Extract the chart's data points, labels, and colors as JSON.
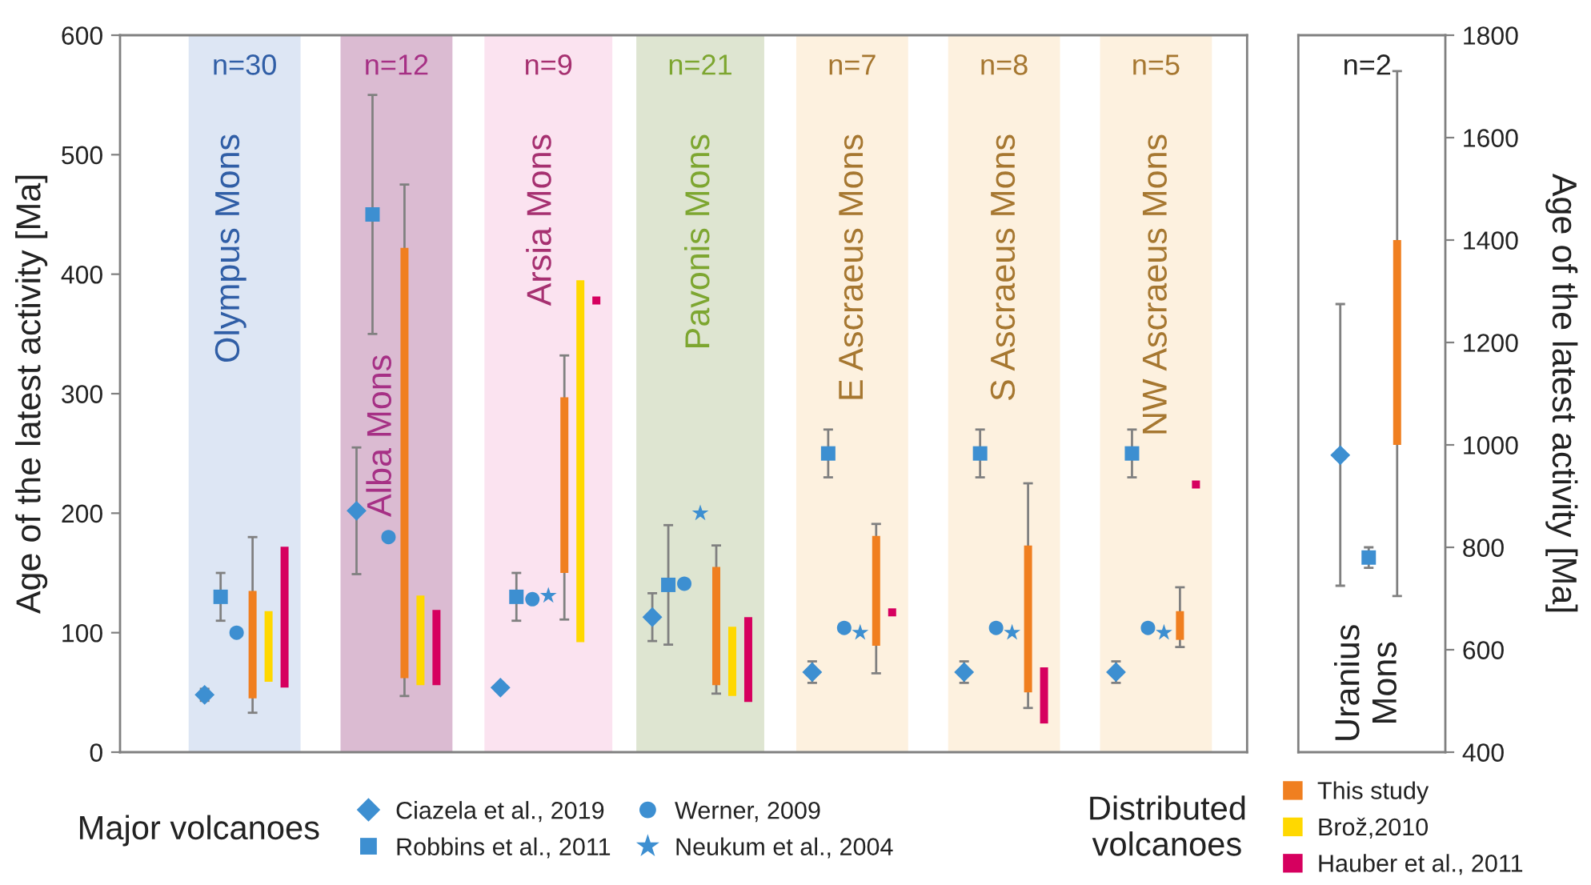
{
  "chart_data": [
    {
      "type": "scatter",
      "categories": [
        "Olympus Mons",
        "Alba Mons",
        "Arsia Mons",
        "Pavonis Mons",
        "E Ascraeus Mons",
        "S Ascraeus Mons",
        "NW Ascraeus Mons"
      ],
      "ylim": [
        0,
        600
      ],
      "yticks": [
        0,
        100,
        200,
        300,
        400,
        500,
        600
      ],
      "ylabel": "Age of the latest activity [Ma]",
      "tick_labels": "y",
      "legend": "bottom",
      "bands": [
        {
          "axis": "x",
          "from": "Olympus Mons",
          "to": "Olympus Mons",
          "color": "#dde6f4"
        },
        {
          "axis": "x",
          "from": "Alba Mons",
          "to": "Alba Mons",
          "color": "#dbbbd2"
        },
        {
          "axis": "x",
          "from": "Arsia Mons",
          "to": "Arsia Mons",
          "color": "#fbe3f0"
        },
        {
          "axis": "x",
          "from": "Pavonis Mons",
          "to": "Pavonis Mons",
          "color": "#dee5d1"
        },
        {
          "axis": "x",
          "from": "E Ascraeus Mons",
          "to": "E Ascraeus Mons",
          "color": "#fdf1df"
        },
        {
          "axis": "x",
          "from": "S Ascraeus Mons",
          "to": "S Ascraeus Mons",
          "color": "#fdf1df"
        },
        {
          "axis": "x",
          "from": "NW Ascraeus Mons",
          "to": "NW Ascraeus Mons",
          "color": "#fdf1df"
        }
      ],
      "annotations": [
        "n=30",
        "n=12",
        "n=9",
        "n=21",
        "n=7",
        "n=8",
        "n=5",
        "Major volcanoes",
        "Distributed\nvolcanoes"
      ],
      "series": [
        {
          "name": "Ciazela et al., 2019",
          "marker": "diamond",
          "color": "#3d8fd1",
          "values": [
            48,
            202,
            54,
            113,
            67,
            67,
            67
          ],
          "errors": [
            5,
            53,
            null,
            20,
            9,
            9,
            9
          ]
        },
        {
          "name": "Robbins et al., 2011",
          "marker": "square",
          "color": "#3d8fd1",
          "values": [
            130,
            450,
            130,
            140,
            250,
            250,
            250
          ],
          "errors": [
            20,
            100,
            20,
            50,
            20,
            20,
            20
          ]
        },
        {
          "name": "Werner, 2009",
          "marker": "circle",
          "color": "#3d8fd1",
          "values": [
            100,
            180,
            128,
            141,
            104,
            104,
            104
          ]
        },
        {
          "name": "Neukum et al., 2004",
          "marker": "star",
          "color": "#3d8fd1",
          "values": [
            null,
            null,
            131,
            200,
            100,
            100,
            100
          ]
        },
        {
          "name": "This study",
          "type": "bar",
          "color": "#f07f20",
          "base": [
            45,
            62,
            150,
            56,
            89,
            50,
            94
          ],
          "values": [
            90,
            360,
            147,
            99,
            92,
            123,
            24
          ],
          "errors": [
            [
              33,
              180
            ],
            [
              47,
              475
            ],
            [
              111,
              332
            ],
            [
              49,
              173
            ],
            [
              66,
              191
            ],
            [
              37,
              225
            ],
            [
              88,
              138
            ]
          ]
        },
        {
          "name": "Brož,2010",
          "type": "bar",
          "color": "#ffd800",
          "base": [
            59,
            56,
            92,
            47,
            null,
            null,
            null
          ],
          "values": [
            59,
            75,
            303,
            58,
            null,
            null,
            null
          ]
        },
        {
          "name": "Hauber et al., 2011",
          "type": "bar",
          "color": "#d6005f",
          "base": [
            54,
            56,
            null,
            42,
            null,
            24,
            null
          ],
          "values": [
            118,
            63,
            null,
            71,
            null,
            47,
            null
          ]
        },
        {
          "marker": "square",
          "color": "#d6005f",
          "values": [
            null,
            null,
            378,
            null,
            117,
            null,
            224
          ]
        }
      ]
    },
    {
      "type": "scatter",
      "categories": [
        "Uranius\nMons"
      ],
      "ylim": [
        400,
        1800
      ],
      "yticks": [
        400,
        600,
        800,
        1000,
        1200,
        1400,
        1600,
        1800
      ],
      "ylabel": "Age of the latest activity [Ma]",
      "tick_labels": "y",
      "annotations": [
        "n=2"
      ],
      "series": [
        {
          "name": "Ciazela et al., 2019",
          "marker": "diamond",
          "color": "#3d8fd1",
          "values": [
            980
          ],
          "errors": [
            [
              725,
              1275
            ]
          ]
        },
        {
          "name": "Robbins et al., 2011",
          "marker": "square",
          "color": "#3d8fd1",
          "values": [
            780
          ],
          "errors": [
            20
          ]
        },
        {
          "name": "This study",
          "type": "bar",
          "color": "#f07f20",
          "base": [
            1000
          ],
          "values": [
            400
          ],
          "errors": [
            [
              705,
              1730
            ]
          ]
        }
      ]
    }
  ]
}
